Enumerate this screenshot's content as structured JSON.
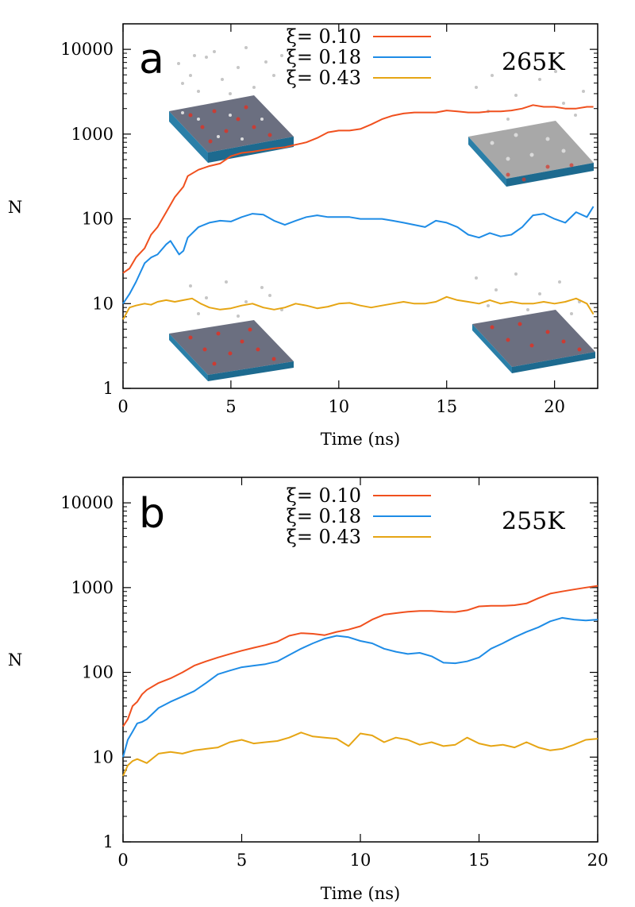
{
  "chart_data": [
    {
      "type": "line",
      "panel_label": "a",
      "annotation": "265K",
      "xlabel": "Time (ns)",
      "ylabel": "N",
      "xlim": [
        0,
        22
      ],
      "ylim": [
        1,
        20000
      ],
      "yscale": "log",
      "xticks": [
        "0",
        "5",
        "10",
        "15",
        "20"
      ],
      "xtick_values": [
        0,
        5,
        10,
        15,
        20
      ],
      "yticks": [
        "1",
        "10",
        "100",
        "1000",
        "10000"
      ],
      "ytick_values": [
        1,
        10,
        100,
        1000,
        10000
      ],
      "legend_position": "top-center",
      "insets": [
        "surface snapshot top-left",
        "surface snapshot top-right",
        "surface snapshot bottom-left",
        "surface snapshot bottom-right"
      ],
      "series": [
        {
          "name": "ξ= 0.10",
          "color": "#f0501e",
          "x": [
            0,
            0.3,
            0.6,
            1,
            1.3,
            1.6,
            2,
            2.4,
            2.8,
            3,
            3.5,
            4,
            4.5,
            5,
            5.5,
            6,
            6.5,
            7,
            7.5,
            8,
            8.5,
            9,
            9.5,
            10,
            10.5,
            11,
            11.5,
            12,
            12.5,
            13,
            13.5,
            14,
            14.5,
            15,
            15.5,
            16,
            16.5,
            17,
            17.5,
            18,
            18.5,
            19,
            19.5,
            20,
            20.5,
            21,
            21.5,
            21.8
          ],
          "values": [
            23,
            26,
            35,
            45,
            65,
            80,
            120,
            180,
            240,
            320,
            380,
            420,
            450,
            550,
            600,
            620,
            650,
            680,
            700,
            750,
            800,
            900,
            1050,
            1100,
            1100,
            1150,
            1300,
            1500,
            1650,
            1750,
            1800,
            1800,
            1800,
            1900,
            1850,
            1800,
            1800,
            1850,
            1850,
            1900,
            2000,
            2200,
            2100,
            2100,
            2000,
            2000,
            2100,
            2100
          ]
        },
        {
          "name": "ξ= 0.18",
          "color": "#1e8ce6",
          "x": [
            0,
            0.3,
            0.6,
            1,
            1.3,
            1.6,
            2,
            2.2,
            2.6,
            2.8,
            3,
            3.5,
            4,
            4.5,
            5,
            5.5,
            6,
            6.5,
            7,
            7.5,
            8,
            8.5,
            9,
            9.5,
            10,
            10.5,
            11,
            11.5,
            12,
            12.5,
            13,
            13.5,
            14,
            14.5,
            15,
            15.5,
            16,
            16.5,
            17,
            17.5,
            18,
            18.5,
            19,
            19.5,
            20,
            20.5,
            21,
            21.5,
            21.8
          ],
          "values": [
            10,
            13,
            18,
            30,
            35,
            38,
            50,
            55,
            38,
            42,
            60,
            80,
            90,
            95,
            93,
            105,
            115,
            112,
            95,
            85,
            95,
            105,
            110,
            105,
            105,
            105,
            100,
            100,
            100,
            95,
            90,
            85,
            80,
            95,
            90,
            80,
            65,
            60,
            68,
            62,
            65,
            80,
            110,
            115,
            100,
            90,
            120,
            105,
            140
          ]
        },
        {
          "name": "ξ= 0.43",
          "color": "#e6a514",
          "x": [
            0,
            0.3,
            0.6,
            1,
            1.3,
            1.6,
            2,
            2.4,
            2.8,
            3.2,
            3.6,
            4,
            4.5,
            5,
            5.5,
            6,
            6.5,
            7,
            7.5,
            8,
            8.5,
            9,
            9.5,
            10,
            10.5,
            11,
            11.5,
            12,
            12.5,
            13,
            13.5,
            14,
            14.5,
            15,
            15.5,
            16,
            16.5,
            17,
            17.5,
            18,
            18.5,
            19,
            19.5,
            20,
            20.5,
            21,
            21.5,
            21.8
          ],
          "values": [
            6.5,
            9,
            9.5,
            10,
            9.7,
            10.5,
            11,
            10.5,
            11,
            11.5,
            10,
            9,
            8.5,
            8.8,
            9.5,
            10,
            9,
            8.5,
            9,
            10,
            9.5,
            8.8,
            9.2,
            10,
            10.2,
            9.5,
            9,
            9.5,
            10,
            10.5,
            10,
            10,
            10.5,
            12,
            11,
            10.5,
            10,
            11,
            10,
            10.5,
            10,
            10,
            10.5,
            10,
            10.5,
            11.5,
            10,
            7.5
          ]
        }
      ]
    },
    {
      "type": "line",
      "panel_label": "b",
      "annotation": "255K",
      "xlabel": "Time (ns)",
      "ylabel": "N",
      "xlim": [
        0,
        20
      ],
      "ylim": [
        1,
        20000
      ],
      "yscale": "log",
      "xticks": [
        "0",
        "5",
        "10",
        "15",
        "20"
      ],
      "xtick_values": [
        0,
        5,
        10,
        15,
        20
      ],
      "yticks": [
        "1",
        "10",
        "100",
        "1000",
        "10000"
      ],
      "ytick_values": [
        1,
        10,
        100,
        1000,
        10000
      ],
      "legend_position": "top-center",
      "series": [
        {
          "name": "ξ= 0.10",
          "color": "#f0501e",
          "x": [
            0,
            0.2,
            0.4,
            0.6,
            0.8,
            1,
            1.5,
            2,
            2.5,
            3,
            3.5,
            4,
            4.5,
            5,
            5.5,
            6,
            6.5,
            7,
            7.5,
            8,
            8.5,
            9,
            9.5,
            10,
            10.5,
            11,
            11.5,
            12,
            12.5,
            13,
            13.5,
            14,
            14.5,
            15,
            15.5,
            16,
            16.5,
            17,
            17.5,
            18,
            18.5,
            19,
            19.5,
            20
          ],
          "values": [
            23,
            28,
            40,
            45,
            55,
            62,
            75,
            85,
            100,
            120,
            135,
            150,
            165,
            180,
            195,
            210,
            230,
            270,
            290,
            285,
            275,
            300,
            320,
            350,
            420,
            480,
            500,
            520,
            530,
            530,
            520,
            515,
            540,
            600,
            610,
            610,
            620,
            650,
            750,
            850,
            900,
            950,
            1000,
            1050
          ]
        },
        {
          "name": "ξ= 0.18",
          "color": "#1e8ce6",
          "x": [
            0,
            0.2,
            0.4,
            0.6,
            0.8,
            1,
            1.5,
            2,
            2.5,
            3,
            3.5,
            4,
            4.5,
            5,
            5.5,
            6,
            6.5,
            7,
            7.5,
            8,
            8.5,
            9,
            9.5,
            10,
            10.5,
            11,
            11.5,
            12,
            12.5,
            13,
            13.5,
            14,
            14.5,
            15,
            15.5,
            16,
            16.5,
            17,
            17.5,
            18,
            18.5,
            19,
            19.5,
            20
          ],
          "values": [
            10,
            16,
            20,
            25,
            26,
            28,
            38,
            45,
            52,
            60,
            75,
            95,
            105,
            115,
            120,
            125,
            135,
            160,
            190,
            220,
            250,
            270,
            260,
            235,
            220,
            190,
            175,
            165,
            170,
            155,
            130,
            128,
            135,
            150,
            190,
            220,
            260,
            300,
            340,
            400,
            440,
            420,
            410,
            420
          ]
        },
        {
          "name": "ξ= 0.43",
          "color": "#e6a514",
          "x": [
            0,
            0.2,
            0.4,
            0.6,
            0.8,
            1,
            1.5,
            2,
            2.5,
            3,
            3.5,
            4,
            4.5,
            5,
            5.5,
            6,
            6.5,
            7,
            7.5,
            8,
            8.5,
            9,
            9.5,
            10,
            10.5,
            11,
            11.5,
            12,
            12.5,
            13,
            13.5,
            14,
            14.5,
            15,
            15.5,
            16,
            16.5,
            17,
            17.5,
            18,
            18.5,
            19,
            19.5,
            20
          ],
          "values": [
            6,
            8,
            9,
            9.5,
            9,
            8.5,
            11,
            11.5,
            11,
            12,
            12.5,
            13,
            15,
            16,
            14.5,
            15,
            15.5,
            17,
            19.5,
            17.5,
            17,
            16.5,
            13.5,
            19,
            18,
            15,
            17,
            16,
            14,
            15,
            13.5,
            14,
            17,
            14.5,
            13.5,
            14,
            13,
            15,
            13,
            12,
            12.5,
            14,
            16,
            16.5
          ]
        }
      ]
    }
  ]
}
